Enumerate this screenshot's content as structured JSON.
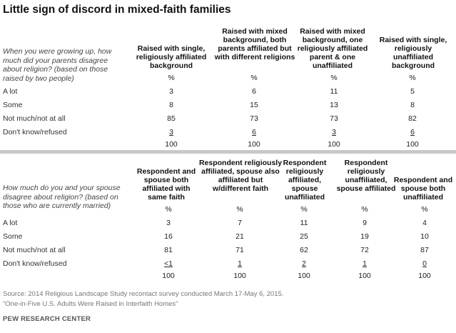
{
  "title": "Little sign of discord in mixed-faith families",
  "table1": {
    "question": "When you were growing up, how much did your parents disagree about religion? (based on those raised by two people)",
    "columns": [
      "Raised with single, religiously affiliated background",
      "Raised with mixed background, both parents affiliated but with different religions",
      "Raised with mixed background, one religiously affiliated parent & one unaffiliated",
      "Raised with single, religiously unaffiliated background"
    ],
    "pct_row": [
      "%",
      "%",
      "%",
      "%"
    ],
    "rows": [
      {
        "label": "A lot",
        "values": [
          "3",
          "6",
          "11",
          "5"
        ]
      },
      {
        "label": "Some",
        "values": [
          "8",
          "15",
          "13",
          "8"
        ]
      },
      {
        "label": "Not much/not at all",
        "values": [
          "85",
          "73",
          "73",
          "82"
        ]
      },
      {
        "label": "Don't know/refused",
        "values": [
          "3",
          "6",
          "3",
          "6"
        ]
      }
    ],
    "totals": [
      "100",
      "100",
      "100",
      "100"
    ]
  },
  "table2": {
    "question": "How much do you and your spouse disagree about religion? (based on those who are currently married)",
    "columns": [
      "Respondent and spouse both affiliated with same faith",
      "Respondent religiously affiliated, spouse also affiliated but w/different faith",
      "Respondent religiously affiliated, spouse unaffiliated",
      "Respondent religiously unaffiliated, spouse affiliated",
      "Respondent and spouse both unaffiliated"
    ],
    "pct_row": [
      "%",
      "%",
      "%",
      "%",
      "%"
    ],
    "rows": [
      {
        "label": "A lot",
        "values": [
          "3",
          "7",
          "11",
          "9",
          "4"
        ]
      },
      {
        "label": "Some",
        "values": [
          "16",
          "21",
          "25",
          "19",
          "10"
        ]
      },
      {
        "label": "Not much/not at all",
        "values": [
          "81",
          "71",
          "62",
          "72",
          "87"
        ]
      },
      {
        "label": "Don't know/refused",
        "values": [
          "<1",
          "1",
          "2",
          "1",
          "0"
        ]
      }
    ],
    "totals": [
      "100",
      "100",
      "100",
      "100",
      "100"
    ]
  },
  "footer": {
    "source": "Source: 2014 Religious Landscape Study recontact survey conducted March 17-May 6, 2015.",
    "report": "“One-in-Five U.S. Adults Were Raised in Interfaith Homes”",
    "brand": "PEW RESEARCH CENTER"
  }
}
